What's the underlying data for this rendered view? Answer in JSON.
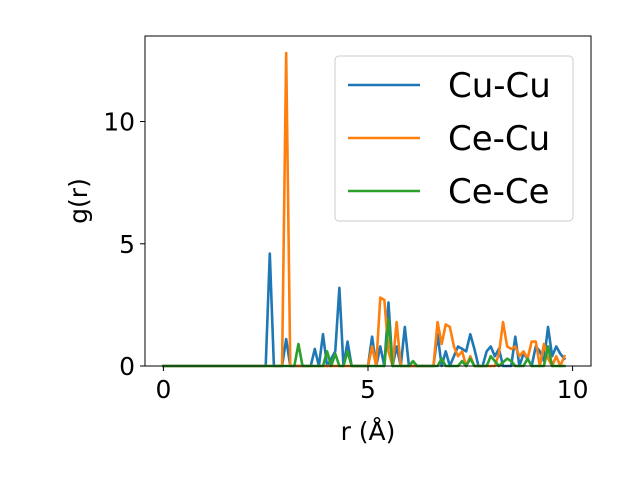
{
  "chart_data": {
    "type": "line",
    "xlabel": "r (Å)",
    "ylabel": "g(r)",
    "xlim": [
      -0.45,
      10.45
    ],
    "ylim": [
      0,
      13.5
    ],
    "xticks": [
      0,
      5,
      10
    ],
    "yticks": [
      0,
      5,
      10
    ],
    "grid": false,
    "legend_position": "top-right",
    "series": [
      {
        "name": "Cu-Cu",
        "color": "#1f77b4",
        "points": [
          [
            0,
            0
          ],
          [
            2.4,
            0
          ],
          [
            2.5,
            0
          ],
          [
            2.6,
            4.6
          ],
          [
            2.7,
            0
          ],
          [
            2.9,
            0
          ],
          [
            3.0,
            1.1
          ],
          [
            3.1,
            0
          ],
          [
            3.6,
            0
          ],
          [
            3.7,
            0.7
          ],
          [
            3.8,
            0
          ],
          [
            3.9,
            1.3
          ],
          [
            4.0,
            0
          ],
          [
            4.2,
            0.6
          ],
          [
            4.3,
            3.2
          ],
          [
            4.4,
            0
          ],
          [
            4.5,
            1.0
          ],
          [
            4.6,
            0
          ],
          [
            5.0,
            0
          ],
          [
            5.1,
            1.2
          ],
          [
            5.2,
            0
          ],
          [
            5.3,
            0.8
          ],
          [
            5.4,
            0
          ],
          [
            5.5,
            2.6
          ],
          [
            5.6,
            0
          ],
          [
            5.7,
            0.8
          ],
          [
            5.8,
            0
          ],
          [
            5.9,
            1.6
          ],
          [
            6.0,
            0
          ],
          [
            6.6,
            0
          ],
          [
            6.7,
            1.3
          ],
          [
            6.8,
            0
          ],
          [
            6.9,
            0.6
          ],
          [
            7.0,
            0
          ],
          [
            7.2,
            0.8
          ],
          [
            7.3,
            0.7
          ],
          [
            7.4,
            0.6
          ],
          [
            7.5,
            1.3
          ],
          [
            7.6,
            0.7
          ],
          [
            7.7,
            0
          ],
          [
            7.8,
            0
          ],
          [
            7.9,
            0.6
          ],
          [
            8.0,
            0.8
          ],
          [
            8.1,
            0.4
          ],
          [
            8.2,
            0.7
          ],
          [
            8.3,
            0
          ],
          [
            8.4,
            0
          ],
          [
            8.5,
            0
          ],
          [
            8.6,
            1.2
          ],
          [
            8.7,
            0
          ],
          [
            8.8,
            0.5
          ],
          [
            8.9,
            0.3
          ],
          [
            9.0,
            0
          ],
          [
            9.1,
            0.8
          ],
          [
            9.2,
            0.6
          ],
          [
            9.3,
            0.2
          ],
          [
            9.4,
            1.6
          ],
          [
            9.5,
            0.4
          ],
          [
            9.6,
            0.8
          ],
          [
            9.7,
            0.5
          ],
          [
            9.8,
            0.3
          ]
        ]
      },
      {
        "name": "Ce-Cu",
        "color": "#ff7f0e",
        "points": [
          [
            0,
            0
          ],
          [
            2.8,
            0
          ],
          [
            2.9,
            0
          ],
          [
            3.0,
            12.8
          ],
          [
            3.1,
            0
          ],
          [
            3.2,
            0
          ],
          [
            5.0,
            0
          ],
          [
            5.1,
            0.8
          ],
          [
            5.2,
            0
          ],
          [
            5.3,
            2.8
          ],
          [
            5.4,
            2.7
          ],
          [
            5.5,
            0.6
          ],
          [
            5.6,
            0
          ],
          [
            5.7,
            1.8
          ],
          [
            5.8,
            0
          ],
          [
            6.6,
            0
          ],
          [
            6.7,
            1.8
          ],
          [
            6.8,
            0.9
          ],
          [
            6.9,
            1.7
          ],
          [
            7.0,
            1.6
          ],
          [
            7.1,
            0.8
          ],
          [
            7.2,
            0.4
          ],
          [
            7.3,
            0.6
          ],
          [
            7.4,
            0
          ],
          [
            7.5,
            0.4
          ],
          [
            7.6,
            0
          ],
          [
            8.1,
            0
          ],
          [
            8.2,
            0.5
          ],
          [
            8.3,
            1.8
          ],
          [
            8.4,
            0.8
          ],
          [
            8.5,
            0.7
          ],
          [
            8.6,
            0.8
          ],
          [
            8.7,
            0.4
          ],
          [
            8.8,
            0.6
          ],
          [
            8.9,
            0.3
          ],
          [
            9.0,
            1.0
          ],
          [
            9.1,
            1.0
          ],
          [
            9.2,
            0
          ],
          [
            9.3,
            0.9
          ],
          [
            9.4,
            0.3
          ],
          [
            9.5,
            0
          ],
          [
            9.6,
            0.4
          ],
          [
            9.7,
            0
          ],
          [
            9.8,
            0.4
          ]
        ]
      },
      {
        "name": "Ce-Ce",
        "color": "#2ca02c",
        "points": [
          [
            0,
            0
          ],
          [
            3.1,
            0
          ],
          [
            3.2,
            0
          ],
          [
            3.3,
            0.9
          ],
          [
            3.4,
            0
          ],
          [
            3.8,
            0
          ],
          [
            3.9,
            0
          ],
          [
            4.0,
            0.6
          ],
          [
            4.1,
            0
          ],
          [
            4.2,
            0.5
          ],
          [
            4.3,
            0
          ],
          [
            4.4,
            0
          ],
          [
            4.5,
            0.6
          ],
          [
            4.6,
            0
          ],
          [
            5.4,
            0
          ],
          [
            5.5,
            1.9
          ],
          [
            5.6,
            0
          ],
          [
            6.0,
            0
          ],
          [
            6.1,
            0.2
          ],
          [
            6.2,
            0
          ],
          [
            6.7,
            0
          ],
          [
            6.8,
            0.3
          ],
          [
            6.9,
            0
          ],
          [
            7.2,
            0
          ],
          [
            7.3,
            0.2
          ],
          [
            7.4,
            0
          ],
          [
            7.5,
            0.3
          ],
          [
            7.6,
            0
          ],
          [
            7.9,
            0
          ],
          [
            8.0,
            0.4
          ],
          [
            8.1,
            0.2
          ],
          [
            8.2,
            0
          ],
          [
            8.4,
            0.3
          ],
          [
            8.5,
            0.2
          ],
          [
            8.6,
            0
          ],
          [
            8.8,
            0
          ],
          [
            8.9,
            0.3
          ],
          [
            9.0,
            0
          ],
          [
            9.3,
            0
          ],
          [
            9.4,
            0.8
          ],
          [
            9.5,
            0
          ],
          [
            9.8,
            0
          ]
        ]
      }
    ]
  }
}
